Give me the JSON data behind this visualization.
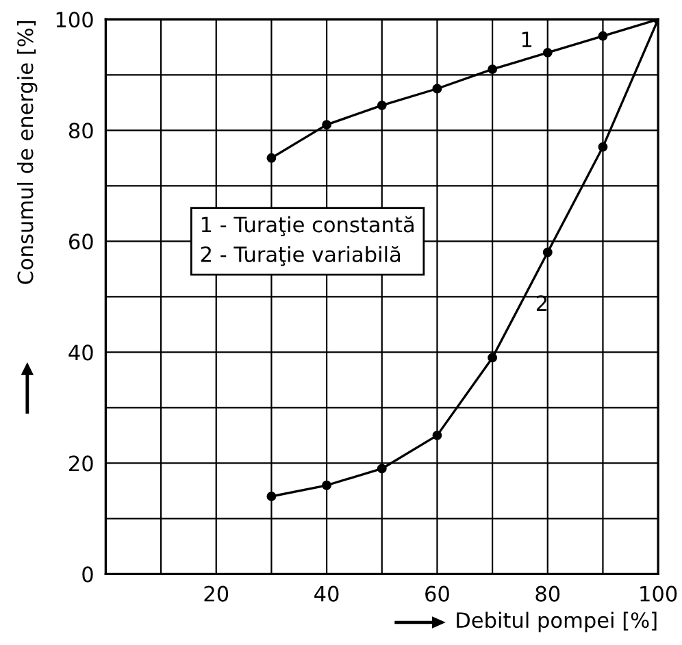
{
  "chart_data": {
    "type": "line",
    "xlabel": "Debitul pompei [%]",
    "ylabel": "Consumul de energie [%]",
    "xlim": [
      0,
      100
    ],
    "ylim": [
      0,
      100
    ],
    "xticks": [
      {
        "value": 10,
        "label": null
      },
      20,
      {
        "value": 30,
        "label": null
      },
      40,
      {
        "value": 50,
        "label": null
      },
      60,
      {
        "value": 70,
        "label": null
      },
      80,
      {
        "value": 90,
        "label": null
      },
      100
    ],
    "yticks": [
      0,
      {
        "value": 10,
        "label": null
      },
      20,
      {
        "value": 30,
        "label": null
      },
      40,
      {
        "value": 50,
        "label": null
      },
      60,
      {
        "value": 70,
        "label": null
      },
      80,
      {
        "value": 90,
        "label": null
      },
      100
    ],
    "grid": true,
    "marker": "circle",
    "line_style": "solid",
    "series": [
      {
        "name": "1",
        "color": "#000000",
        "x": [
          30,
          40,
          50,
          60,
          70,
          80,
          90,
          100
        ],
        "values": [
          75,
          81,
          84.5,
          87.5,
          91,
          94,
          97,
          100
        ]
      },
      {
        "name": "2",
        "color": "#000000",
        "x": [
          30,
          40,
          50,
          60,
          70,
          80,
          90,
          100
        ],
        "values": [
          14,
          16,
          19,
          25,
          39,
          58,
          77,
          100
        ]
      }
    ],
    "annotations": [
      "1 - Turaţie constantă",
      "2 - Turaţie variabilă"
    ]
  }
}
